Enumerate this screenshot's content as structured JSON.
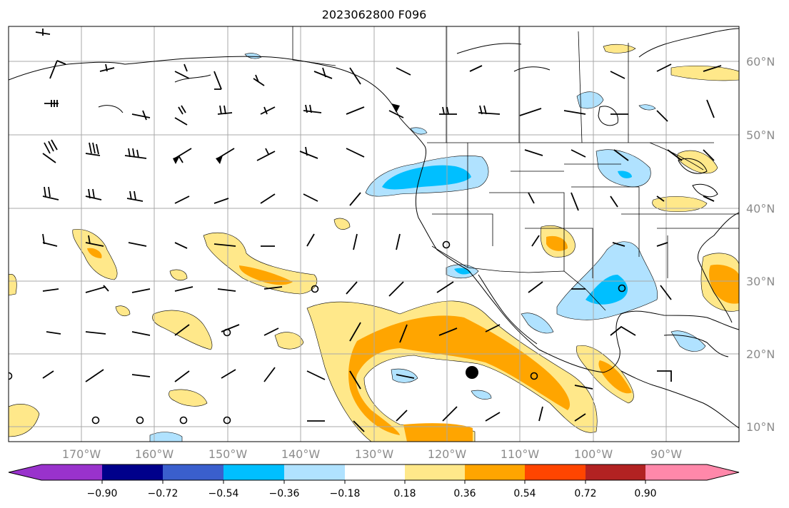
{
  "title": "2023062800 F096",
  "map": {
    "lat_labels": [
      "60°N",
      "50°N",
      "40°N",
      "30°N",
      "20°N",
      "10°N"
    ],
    "lon_labels": [
      "170°W",
      "160°W",
      "150°W",
      "140°W",
      "130°W",
      "120°W",
      "110°W",
      "100°W",
      "90°W"
    ],
    "grid": true,
    "marker": "filled-circle"
  },
  "colorbar": {
    "colors": [
      "#9932cc",
      "#00008b",
      "#3a5fcd",
      "#00bfff",
      "#b0e2ff",
      "#ffffff",
      "#ffe88a",
      "#ffa500",
      "#ff4500",
      "#b22222",
      "#ff88aa"
    ],
    "tick_labels": [
      "−0.90",
      "−0.72",
      "−0.54",
      "−0.36",
      "−0.18",
      "0.18",
      "0.36",
      "0.54",
      "0.72",
      "0.90"
    ],
    "extend": "both"
  }
}
